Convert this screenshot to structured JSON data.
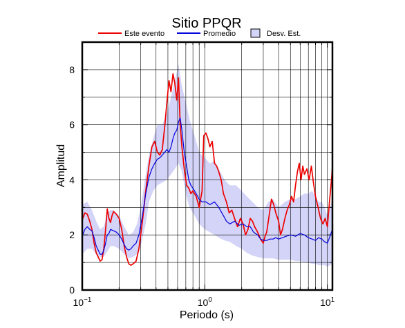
{
  "chart_data": {
    "type": "line",
    "title": "Sitio PPQR",
    "xlabel": "Periodo (s)",
    "ylabel": "Amplitud",
    "xscale": "log",
    "xlim": [
      0.1,
      11
    ],
    "ylim": [
      0,
      9
    ],
    "grid": true,
    "legend_position": "top",
    "x_tick_labels": [
      {
        "value": 0.1,
        "base": "10",
        "exp": "−1"
      },
      {
        "value": 1,
        "base": "10",
        "exp": "0"
      },
      {
        "value": 10,
        "base": "10",
        "exp": "1"
      }
    ],
    "y_ticks": [
      0,
      2,
      4,
      6,
      8
    ],
    "y_tick_labels": [
      "0",
      "2",
      "4",
      "6",
      "8"
    ],
    "colors": {
      "event": "#ee0000",
      "mean": "#0000dd",
      "band_fill": "#d4d4f8",
      "band_edge": "#444444"
    },
    "legend": [
      {
        "label": "Este evento",
        "kind": "line",
        "color": "#ee0000"
      },
      {
        "label": "Promedio",
        "kind": "line",
        "color": "#0000dd"
      },
      {
        "label": "Desv. Est.",
        "kind": "box",
        "color": "#d4d4f8"
      }
    ],
    "series": [
      {
        "name": "Este evento",
        "color": "#ee0000",
        "points": [
          [
            0.1,
            2.55
          ],
          [
            0.105,
            2.8
          ],
          [
            0.11,
            2.75
          ],
          [
            0.115,
            2.5
          ],
          [
            0.12,
            2.2
          ],
          [
            0.125,
            1.7
          ],
          [
            0.13,
            1.35
          ],
          [
            0.135,
            1.2
          ],
          [
            0.14,
            1.05
          ],
          [
            0.145,
            1.1
          ],
          [
            0.15,
            1.5
          ],
          [
            0.155,
            2.2
          ],
          [
            0.16,
            2.95
          ],
          [
            0.165,
            2.6
          ],
          [
            0.17,
            2.45
          ],
          [
            0.175,
            2.7
          ],
          [
            0.18,
            2.85
          ],
          [
            0.19,
            2.75
          ],
          [
            0.2,
            2.6
          ],
          [
            0.21,
            2.2
          ],
          [
            0.22,
            1.6
          ],
          [
            0.23,
            1.2
          ],
          [
            0.24,
            0.95
          ],
          [
            0.25,
            0.9
          ],
          [
            0.26,
            0.95
          ],
          [
            0.275,
            1.05
          ],
          [
            0.29,
            1.5
          ],
          [
            0.31,
            2.5
          ],
          [
            0.33,
            3.6
          ],
          [
            0.35,
            4.5
          ],
          [
            0.37,
            5.2
          ],
          [
            0.39,
            5.4
          ],
          [
            0.41,
            5.0
          ],
          [
            0.43,
            4.9
          ],
          [
            0.45,
            5.1
          ],
          [
            0.47,
            5.9
          ],
          [
            0.49,
            6.8
          ],
          [
            0.51,
            7.6
          ],
          [
            0.53,
            7.2
          ],
          [
            0.55,
            7.85
          ],
          [
            0.57,
            7.5
          ],
          [
            0.59,
            6.9
          ],
          [
            0.61,
            7.7
          ],
          [
            0.63,
            6.0
          ],
          [
            0.65,
            5.2
          ],
          [
            0.68,
            4.4
          ],
          [
            0.71,
            3.8
          ],
          [
            0.74,
            3.7
          ],
          [
            0.77,
            3.5
          ],
          [
            0.8,
            3.6
          ],
          [
            0.85,
            3.4
          ],
          [
            0.9,
            3.0
          ],
          [
            0.95,
            3.6
          ],
          [
            0.98,
            5.6
          ],
          [
            1.02,
            5.7
          ],
          [
            1.06,
            5.5
          ],
          [
            1.1,
            5.2
          ],
          [
            1.15,
            5.4
          ],
          [
            1.2,
            4.6
          ],
          [
            1.25,
            4.5
          ],
          [
            1.3,
            4.3
          ],
          [
            1.36,
            4.0
          ],
          [
            1.42,
            3.5
          ],
          [
            1.5,
            3.2
          ],
          [
            1.58,
            2.8
          ],
          [
            1.66,
            2.9
          ],
          [
            1.75,
            2.6
          ],
          [
            1.85,
            2.3
          ],
          [
            1.95,
            2.6
          ],
          [
            2.05,
            2.4
          ],
          [
            2.15,
            2.0
          ],
          [
            2.25,
            2.2
          ],
          [
            2.35,
            2.6
          ],
          [
            2.45,
            2.5
          ],
          [
            2.55,
            2.3
          ],
          [
            2.7,
            2.1
          ],
          [
            2.85,
            1.85
          ],
          [
            3.0,
            1.7
          ],
          [
            3.1,
            1.95
          ],
          [
            3.2,
            2.1
          ],
          [
            3.35,
            2.7
          ],
          [
            3.5,
            3.3
          ],
          [
            3.65,
            3.1
          ],
          [
            3.8,
            2.8
          ],
          [
            4.0,
            2.5
          ],
          [
            4.15,
            2.0
          ],
          [
            4.3,
            2.2
          ],
          [
            4.5,
            2.6
          ],
          [
            4.7,
            2.9
          ],
          [
            4.9,
            3.1
          ],
          [
            5.1,
            3.4
          ],
          [
            5.3,
            3.2
          ],
          [
            5.5,
            3.8
          ],
          [
            5.7,
            4.3
          ],
          [
            5.9,
            4.6
          ],
          [
            6.1,
            4.0
          ],
          [
            6.3,
            4.5
          ],
          [
            6.5,
            4.2
          ],
          [
            6.8,
            4.4
          ],
          [
            7.1,
            4.0
          ],
          [
            7.4,
            4.5
          ],
          [
            7.7,
            3.9
          ],
          [
            8.0,
            3.4
          ],
          [
            8.4,
            3.0
          ],
          [
            8.8,
            2.6
          ],
          [
            9.2,
            2.4
          ],
          [
            9.6,
            2.6
          ],
          [
            10.0,
            2.3
          ],
          [
            10.4,
            3.2
          ],
          [
            10.8,
            4.0
          ],
          [
            11.0,
            4.5
          ]
        ]
      },
      {
        "name": "Promedio",
        "color": "#0000dd",
        "points": [
          [
            0.1,
            1.95
          ],
          [
            0.105,
            2.2
          ],
          [
            0.11,
            2.3
          ],
          [
            0.115,
            2.2
          ],
          [
            0.12,
            2.15
          ],
          [
            0.125,
            1.9
          ],
          [
            0.13,
            1.6
          ],
          [
            0.135,
            1.45
          ],
          [
            0.14,
            1.3
          ],
          [
            0.145,
            1.3
          ],
          [
            0.15,
            1.45
          ],
          [
            0.155,
            1.7
          ],
          [
            0.16,
            2.0
          ],
          [
            0.165,
            2.05
          ],
          [
            0.17,
            2.2
          ],
          [
            0.18,
            2.15
          ],
          [
            0.19,
            2.1
          ],
          [
            0.2,
            2.0
          ],
          [
            0.21,
            1.85
          ],
          [
            0.22,
            1.65
          ],
          [
            0.23,
            1.5
          ],
          [
            0.24,
            1.45
          ],
          [
            0.25,
            1.5
          ],
          [
            0.26,
            1.6
          ],
          [
            0.275,
            1.7
          ],
          [
            0.29,
            2.0
          ],
          [
            0.31,
            2.7
          ],
          [
            0.33,
            3.5
          ],
          [
            0.35,
            4.1
          ],
          [
            0.37,
            4.4
          ],
          [
            0.39,
            4.6
          ],
          [
            0.41,
            4.75
          ],
          [
            0.43,
            4.8
          ],
          [
            0.45,
            4.9
          ],
          [
            0.47,
            5.0
          ],
          [
            0.49,
            5.1
          ],
          [
            0.51,
            5.0
          ],
          [
            0.53,
            5.2
          ],
          [
            0.55,
            5.5
          ],
          [
            0.57,
            5.7
          ],
          [
            0.59,
            5.8
          ],
          [
            0.61,
            6.1
          ],
          [
            0.63,
            6.25
          ],
          [
            0.65,
            5.8
          ],
          [
            0.68,
            5.0
          ],
          [
            0.71,
            4.5
          ],
          [
            0.74,
            4.0
          ],
          [
            0.77,
            3.8
          ],
          [
            0.8,
            3.7
          ],
          [
            0.85,
            3.5
          ],
          [
            0.9,
            3.3
          ],
          [
            0.95,
            3.2
          ],
          [
            1.02,
            3.2
          ],
          [
            1.1,
            3.1
          ],
          [
            1.2,
            3.2
          ],
          [
            1.3,
            3.0
          ],
          [
            1.42,
            2.7
          ],
          [
            1.5,
            2.5
          ],
          [
            1.6,
            2.4
          ],
          [
            1.75,
            2.5
          ],
          [
            1.9,
            2.35
          ],
          [
            2.05,
            2.4
          ],
          [
            2.2,
            2.3
          ],
          [
            2.35,
            2.3
          ],
          [
            2.5,
            2.1
          ],
          [
            2.7,
            2.0
          ],
          [
            2.85,
            1.85
          ],
          [
            3.0,
            1.8
          ],
          [
            3.2,
            1.8
          ],
          [
            3.4,
            1.85
          ],
          [
            3.6,
            1.85
          ],
          [
            3.8,
            1.9
          ],
          [
            4.0,
            1.85
          ],
          [
            4.3,
            1.9
          ],
          [
            4.6,
            1.95
          ],
          [
            5.0,
            2.0
          ],
          [
            5.5,
            1.95
          ],
          [
            6.0,
            2.05
          ],
          [
            6.5,
            2.0
          ],
          [
            7.0,
            1.9
          ],
          [
            7.5,
            1.85
          ],
          [
            8.0,
            1.8
          ],
          [
            8.5,
            1.9
          ],
          [
            9.0,
            1.85
          ],
          [
            9.5,
            1.75
          ],
          [
            10.0,
            1.7
          ],
          [
            10.4,
            1.9
          ],
          [
            10.8,
            2.1
          ],
          [
            11.0,
            2.2
          ]
        ]
      }
    ],
    "band": {
      "name": "Desv. Est.",
      "upper": [
        [
          0.1,
          3.1
        ],
        [
          0.11,
          3.2
        ],
        [
          0.12,
          2.9
        ],
        [
          0.13,
          2.5
        ],
        [
          0.14,
          2.2
        ],
        [
          0.15,
          2.3
        ],
        [
          0.16,
          2.8
        ],
        [
          0.17,
          2.9
        ],
        [
          0.18,
          2.9
        ],
        [
          0.2,
          2.7
        ],
        [
          0.22,
          2.3
        ],
        [
          0.24,
          2.0
        ],
        [
          0.26,
          2.1
        ],
        [
          0.28,
          2.4
        ],
        [
          0.3,
          3.0
        ],
        [
          0.33,
          4.2
        ],
        [
          0.35,
          4.9
        ],
        [
          0.38,
          5.5
        ],
        [
          0.41,
          6.0
        ],
        [
          0.45,
          6.0
        ],
        [
          0.49,
          6.4
        ],
        [
          0.53,
          7.0
        ],
        [
          0.57,
          7.6
        ],
        [
          0.61,
          8.2
        ],
        [
          0.65,
          7.4
        ],
        [
          0.7,
          6.8
        ],
        [
          0.75,
          6.2
        ],
        [
          0.8,
          5.8
        ],
        [
          0.85,
          5.4
        ],
        [
          0.9,
          5.0
        ],
        [
          1.0,
          4.8
        ],
        [
          1.1,
          4.6
        ],
        [
          1.2,
          4.7
        ],
        [
          1.3,
          4.4
        ],
        [
          1.45,
          4.0
        ],
        [
          1.6,
          3.8
        ],
        [
          1.8,
          3.8
        ],
        [
          2.0,
          3.6
        ],
        [
          2.2,
          3.4
        ],
        [
          2.45,
          3.2
        ],
        [
          2.7,
          3.0
        ],
        [
          3.0,
          2.9
        ],
        [
          3.3,
          3.2
        ],
        [
          3.6,
          3.3
        ],
        [
          4.0,
          3.0
        ],
        [
          4.5,
          3.2
        ],
        [
          5.0,
          3.3
        ],
        [
          5.5,
          3.3
        ],
        [
          6.0,
          3.4
        ],
        [
          6.5,
          3.5
        ],
        [
          7.0,
          3.5
        ],
        [
          7.5,
          3.6
        ],
        [
          8.0,
          3.4
        ],
        [
          8.5,
          3.2
        ],
        [
          9.0,
          3.2
        ],
        [
          9.5,
          3.0
        ],
        [
          10.0,
          2.7
        ],
        [
          10.5,
          3.0
        ],
        [
          11.0,
          3.3
        ]
      ],
      "lower": [
        [
          0.1,
          1.3
        ],
        [
          0.11,
          1.5
        ],
        [
          0.12,
          1.5
        ],
        [
          0.13,
          1.3
        ],
        [
          0.14,
          1.2
        ],
        [
          0.15,
          1.2
        ],
        [
          0.16,
          1.4
        ],
        [
          0.17,
          1.6
        ],
        [
          0.18,
          1.6
        ],
        [
          0.2,
          1.5
        ],
        [
          0.22,
          1.3
        ],
        [
          0.24,
          1.15
        ],
        [
          0.26,
          1.2
        ],
        [
          0.28,
          1.3
        ],
        [
          0.3,
          1.6
        ],
        [
          0.33,
          2.4
        ],
        [
          0.35,
          3.2
        ],
        [
          0.38,
          3.6
        ],
        [
          0.41,
          3.8
        ],
        [
          0.45,
          3.9
        ],
        [
          0.49,
          4.0
        ],
        [
          0.53,
          4.2
        ],
        [
          0.57,
          4.4
        ],
        [
          0.61,
          4.6
        ],
        [
          0.65,
          4.3
        ],
        [
          0.7,
          3.5
        ],
        [
          0.75,
          3.0
        ],
        [
          0.8,
          2.8
        ],
        [
          0.85,
          2.6
        ],
        [
          0.9,
          2.4
        ],
        [
          1.0,
          2.2
        ],
        [
          1.1,
          2.1
        ],
        [
          1.2,
          2.0
        ],
        [
          1.3,
          1.9
        ],
        [
          1.45,
          1.8
        ],
        [
          1.6,
          1.75
        ],
        [
          1.8,
          1.6
        ],
        [
          2.0,
          1.5
        ],
        [
          2.2,
          1.35
        ],
        [
          2.45,
          1.25
        ],
        [
          2.7,
          1.2
        ],
        [
          3.0,
          1.15
        ],
        [
          3.3,
          1.15
        ],
        [
          3.6,
          1.15
        ],
        [
          4.0,
          1.1
        ],
        [
          4.5,
          1.1
        ],
        [
          5.0,
          1.1
        ],
        [
          5.5,
          1.05
        ],
        [
          6.0,
          1.05
        ],
        [
          6.5,
          1.0
        ],
        [
          7.0,
          1.0
        ],
        [
          7.5,
          0.95
        ],
        [
          8.0,
          0.95
        ],
        [
          8.5,
          0.9
        ],
        [
          9.0,
          0.9
        ],
        [
          9.5,
          0.9
        ],
        [
          10.0,
          0.85
        ],
        [
          10.5,
          0.9
        ],
        [
          11.0,
          0.95
        ]
      ]
    }
  }
}
